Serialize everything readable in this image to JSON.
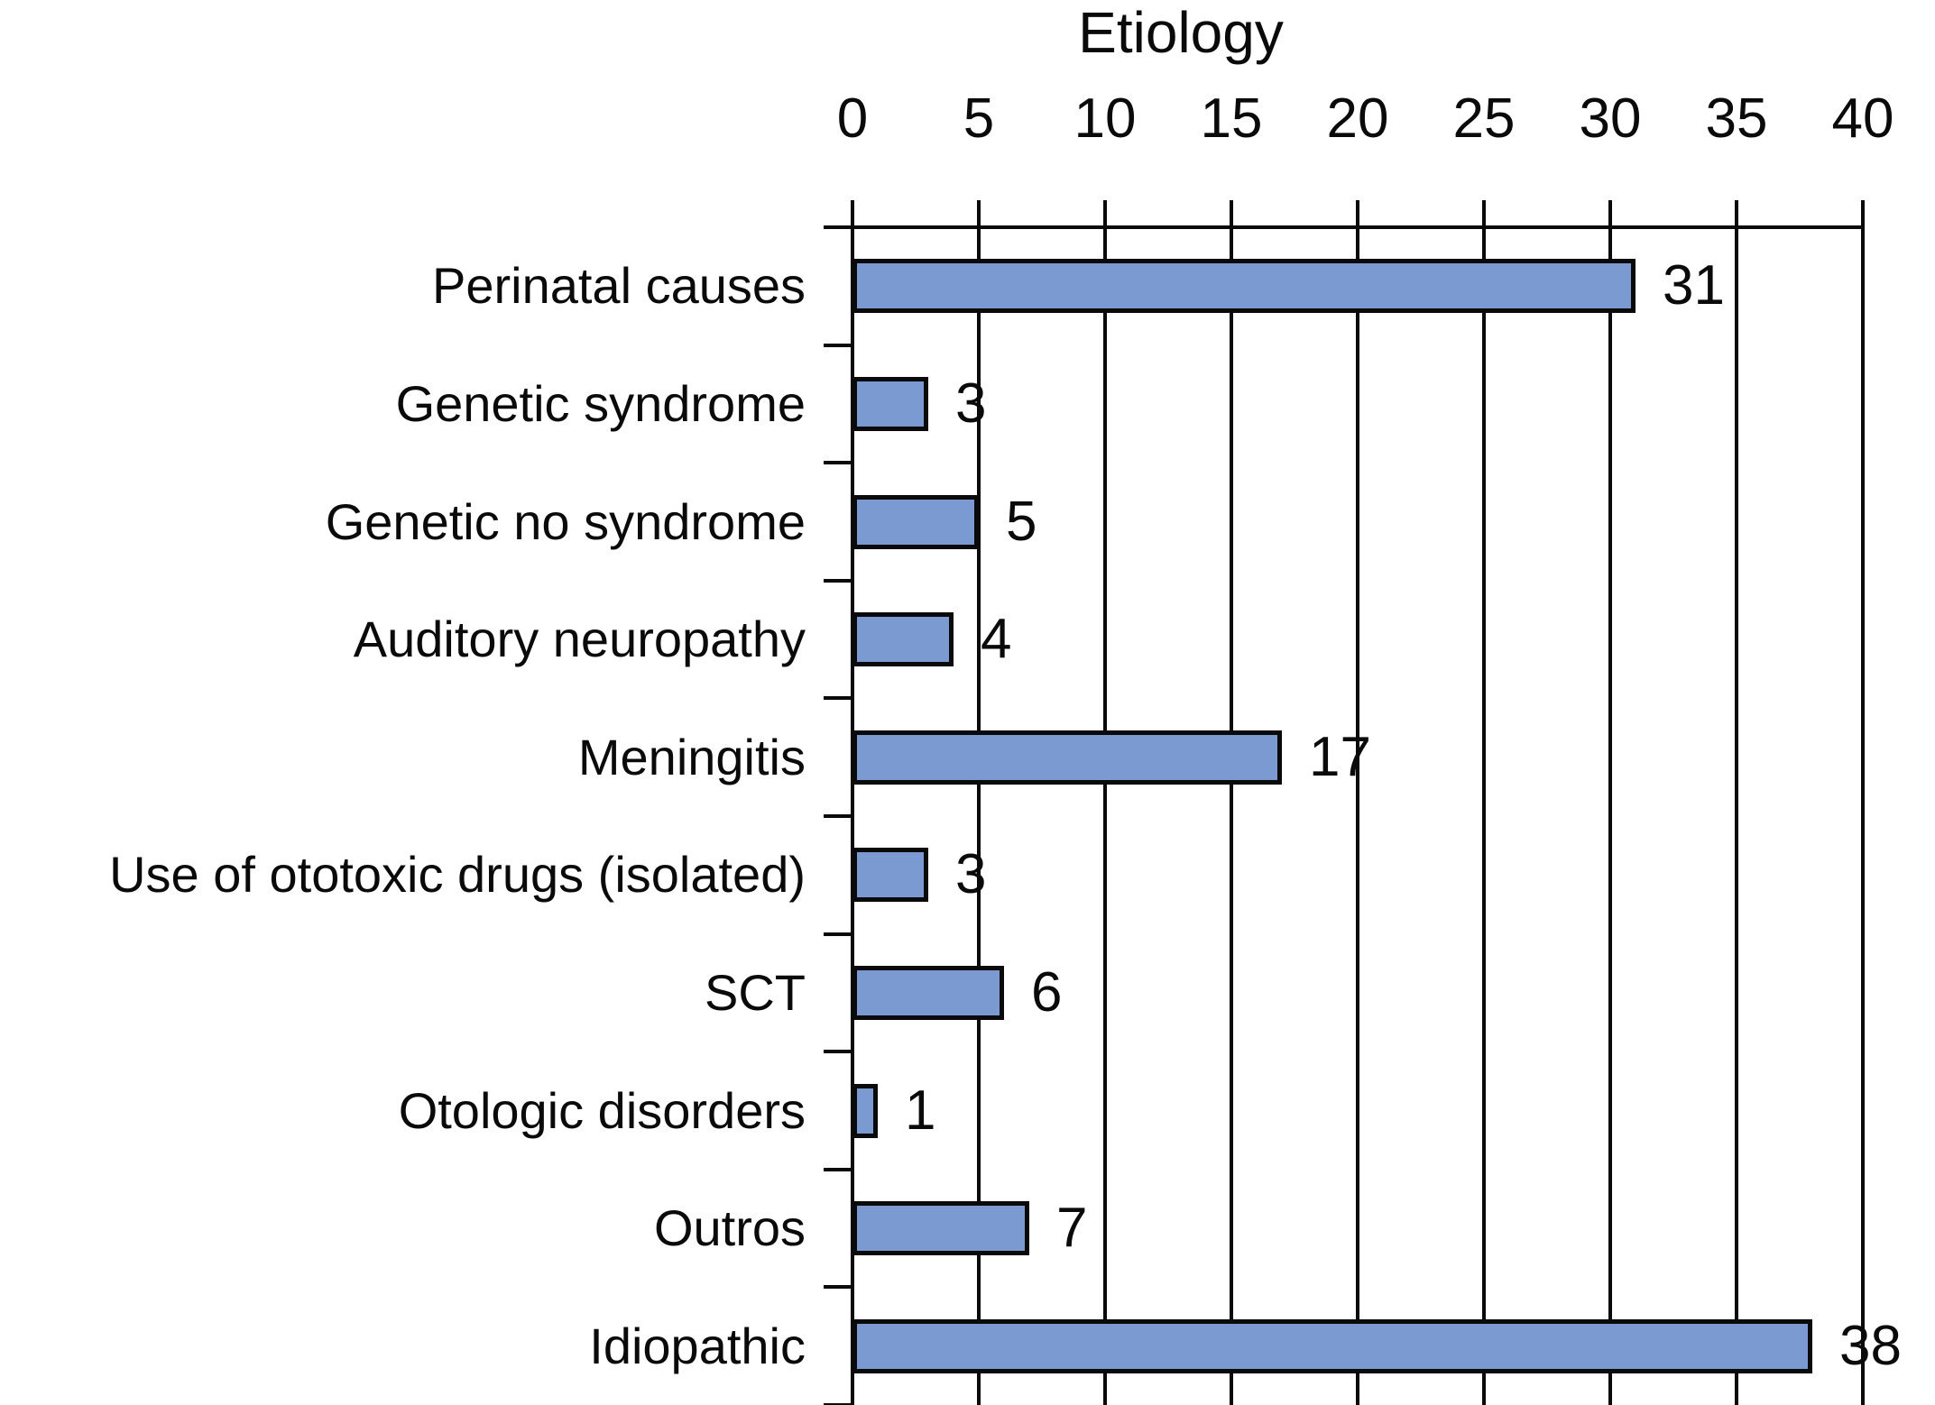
{
  "chart_data": {
    "type": "bar",
    "orientation": "horizontal",
    "title": "Etiology",
    "categories": [
      "Perinatal causes",
      "Genetic syndrome",
      "Genetic no syndrome",
      "Auditory neuropathy",
      "Meningitis",
      "Use of ototoxic drugs (isolated)",
      "SCT",
      "Otologic disorders",
      "Outros",
      "Idiopathic"
    ],
    "values": [
      31,
      3,
      5,
      4,
      17,
      3,
      6,
      1,
      7,
      38
    ],
    "value_labels": [
      "31",
      "3",
      "5",
      "4",
      "17",
      "3",
      "6",
      "1",
      "7",
      "38"
    ],
    "x_ticks": [
      "0",
      "5",
      "10",
      "15",
      "20",
      "25",
      "30",
      "35",
      "40"
    ],
    "xlim": [
      0,
      40
    ],
    "xlabel": "",
    "ylabel": "",
    "grid": true,
    "legend": "none",
    "bar_color": "#7B9AD1",
    "bar_border_color": "#0A0A0A",
    "axis_color": "#0A0A0A",
    "text_color": "#0A0A0A",
    "background_color": "#FFFFFF"
  }
}
